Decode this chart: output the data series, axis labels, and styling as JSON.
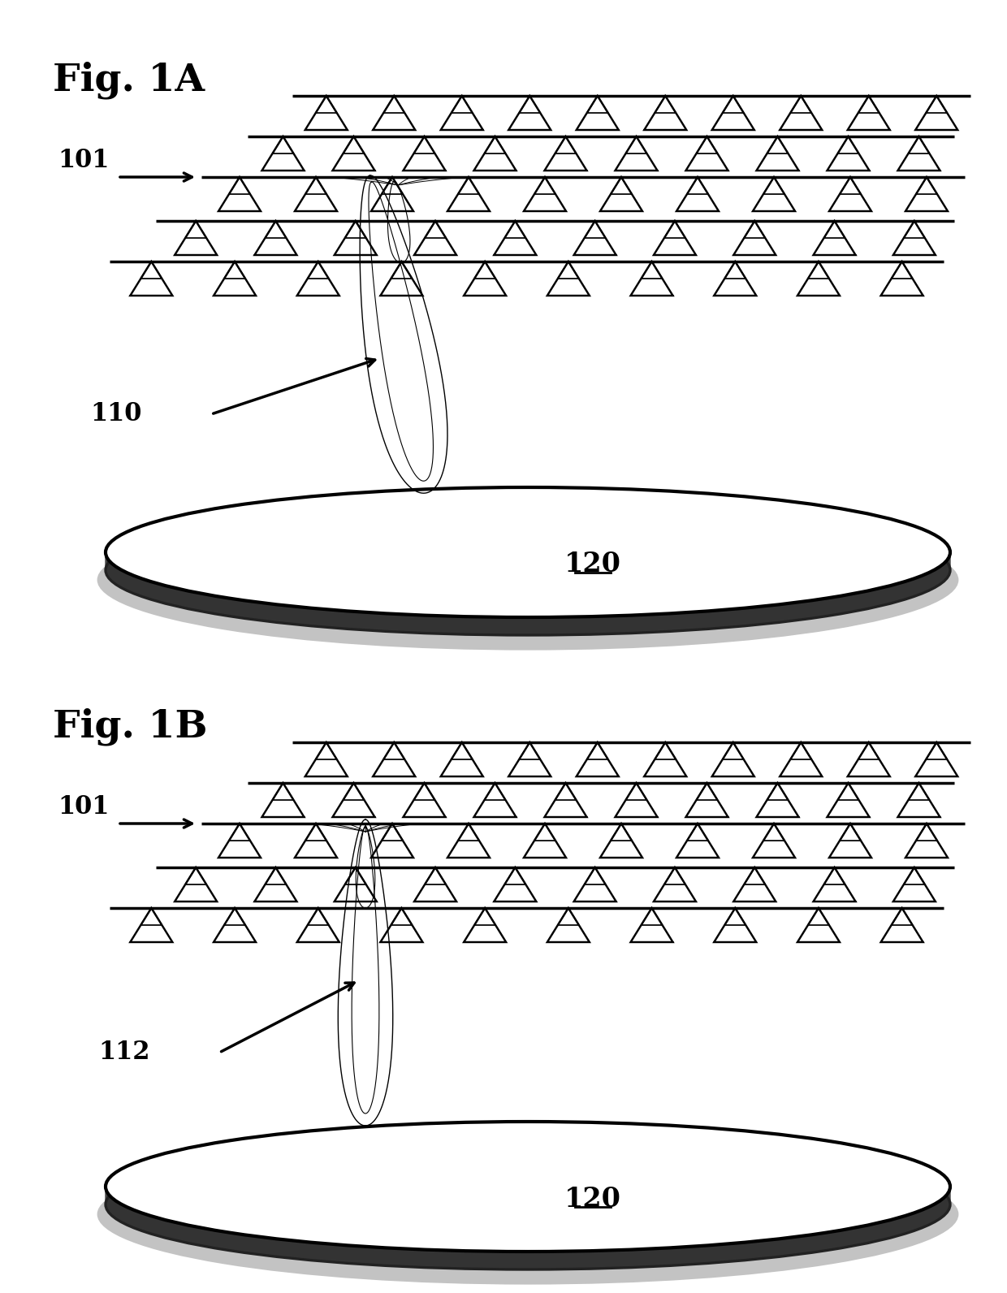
{
  "fig_title_A": "Fig. 1A",
  "fig_title_B": "Fig. 1B",
  "label_101_A": "101",
  "label_101_B": "101",
  "label_110": "110",
  "label_112": "112",
  "label_120_A": "120",
  "label_120_B": "120",
  "background_color": "#ffffff",
  "line_color": "#000000"
}
